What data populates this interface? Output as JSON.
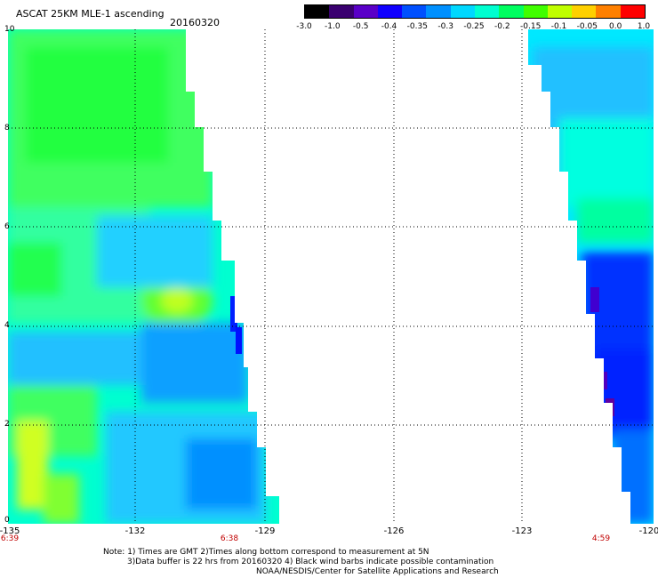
{
  "header": {
    "title": "ASCAT 25KM MLE-1 ascending",
    "date": "20160320"
  },
  "colorbar": {
    "ticks": [
      "-3.0",
      "-1.0",
      "-0.5",
      "-0.4",
      "-0.35",
      "-0.3",
      "-0.25",
      "-0.2",
      "-0.15",
      "-0.1",
      "-0.05",
      "0.0",
      "1.0"
    ],
    "colors": [
      "#000000",
      "#3a0070",
      "#5a00c8",
      "#1000ff",
      "#0050ff",
      "#0090ff",
      "#00d8ff",
      "#00ffd0",
      "#00ff60",
      "#40ff00",
      "#c0ff00",
      "#ffd000",
      "#ff8000",
      "#ff0000"
    ]
  },
  "map": {
    "lon_range": [
      -135,
      -120
    ],
    "lat_range": [
      0,
      10
    ],
    "x_ticks": [
      "-135",
      "-132",
      "-129",
      "-126",
      "-123",
      "-120"
    ],
    "y_ticks": [
      "10",
      "8",
      "6",
      "4",
      "2",
      "0"
    ],
    "time_labels": [
      {
        "text": "6:39"
      },
      {
        "text": "6:38"
      },
      {
        "text": "4:59"
      }
    ]
  },
  "notes": {
    "line1": "Note: 1) Times are GMT 2)Times along bottom correspond to measurement at 5N",
    "line2": "3)Data buffer is 22 hrs from 20160320 4) Black wind barbs indicate possible contamination",
    "line3": "NOAA/NESDIS/Center for Satellite Applications and Research"
  }
}
